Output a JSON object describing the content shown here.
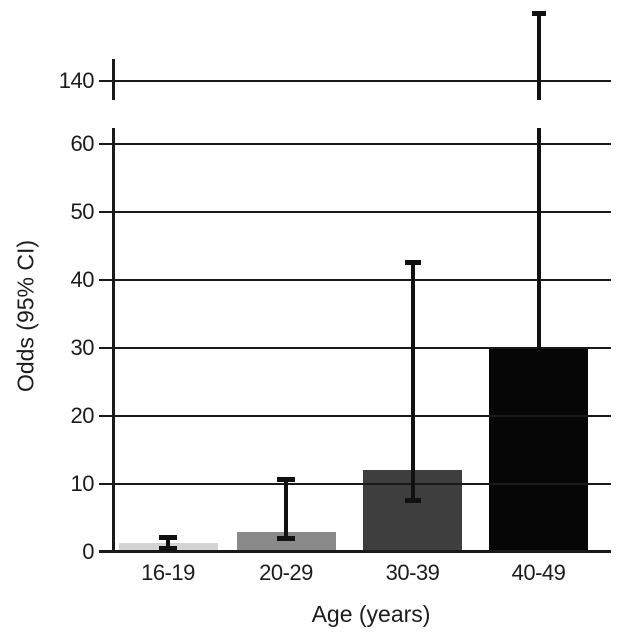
{
  "chart_data": {
    "type": "bar",
    "title": "",
    "xlabel": "Age (years)",
    "ylabel": "Odds (95% CI)",
    "categories": [
      "16-19",
      "20-29",
      "30-39",
      "40-49"
    ],
    "values": [
      1.2,
      2.9,
      12,
      30
    ],
    "error_low": [
      0.5,
      1.9,
      7.5,
      null
    ],
    "error_high": [
      2,
      10.6,
      42.5,
      150
    ],
    "bar_colors": [
      "#d3d3d3",
      "#8a8a8a",
      "#3e3e3e",
      "#060606"
    ],
    "line_color": "#1a1a1a",
    "grid": true,
    "legend": false,
    "y_ticks": [
      0,
      10,
      20,
      30,
      40,
      50,
      60
    ],
    "y_tick_labels": [
      "0",
      "10",
      "20",
      "30",
      "40",
      "50",
      "60"
    ],
    "axis_break": true,
    "break_tick": 140,
    "break_tick_label": "140",
    "ylim_main": [
      0,
      63
    ],
    "note": "broken y-axis: upper panel shows 140 gridline; 40-49 upper CI extends to ~150"
  }
}
